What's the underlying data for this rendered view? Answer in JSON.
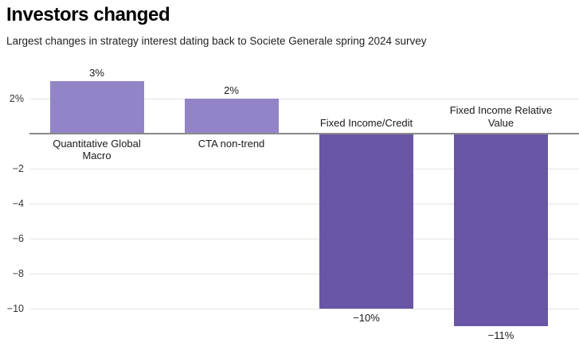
{
  "title": "Investors changed",
  "subtitle": "Largest changes in strategy interest dating back to Societe Generale spring 2024 survey",
  "chart_data": {
    "type": "bar",
    "title": "Investors changed",
    "subtitle": "Largest changes in strategy interest dating back to Societe Generale spring 2024 survey",
    "categories": [
      "Quantitative Global Macro",
      "CTA non-trend",
      "Fixed Income/Credit",
      "Fixed Income Relative Value"
    ],
    "values": [
      3,
      2,
      -10,
      -11
    ],
    "value_labels": [
      "3%",
      "2%",
      "−10%",
      "−11%"
    ],
    "unit": "%",
    "xlabel": "",
    "ylabel": "",
    "ylim": [
      -12,
      4
    ],
    "grid": true,
    "legend": "none",
    "yticks": [
      {
        "value": 2,
        "label": "2%"
      },
      {
        "value": -2,
        "label": "−2"
      },
      {
        "value": -4,
        "label": "−4"
      },
      {
        "value": -6,
        "label": "−6"
      },
      {
        "value": -8,
        "label": "−8"
      },
      {
        "value": -10,
        "label": "−10"
      }
    ],
    "colors": {
      "positive_bar": "#9384C7",
      "negative_bar": "#6955A5",
      "gridline": "#e4e4e4",
      "zero_line": "#8a8a8a",
      "label_text": "#1a1a1a"
    }
  }
}
